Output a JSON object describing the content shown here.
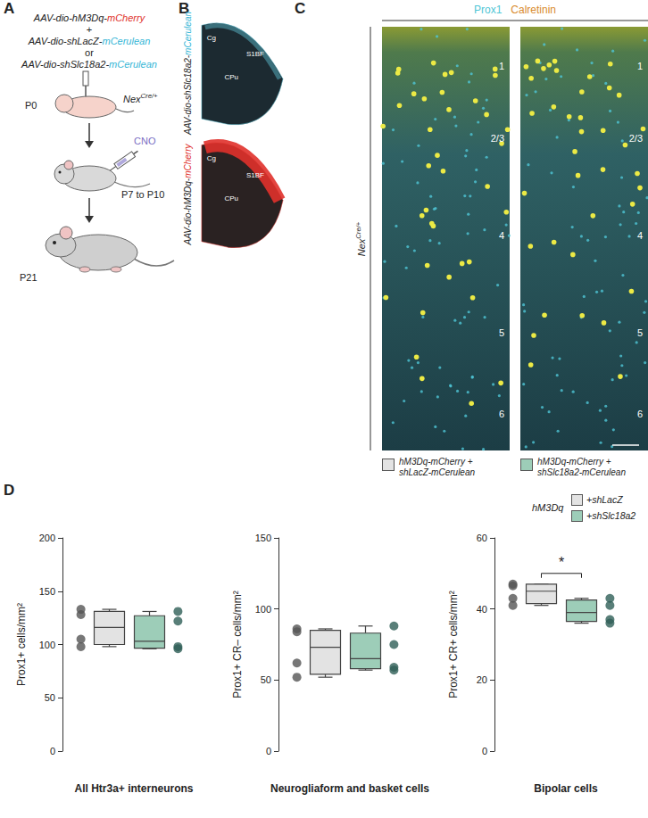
{
  "figure": {
    "A": {
      "label": "A",
      "vectors": [
        {
          "text": "AAV-dio-hM3Dq-",
          "reporter": "mCherry",
          "color": "#e0312b"
        },
        {
          "text": "AAV-dio-shLacZ-",
          "reporter": "mCerulean",
          "color": "#35b6d6"
        },
        {
          "text": "AAV-dio-shSlc18a2-",
          "reporter": "mCerulean",
          "color": "#35b6d6"
        }
      ],
      "joiners": [
        "+",
        "or"
      ],
      "genotype": {
        "base": "Nex",
        "sup": "Cre/+"
      },
      "drug": {
        "text": "CNO",
        "color": "#7b6fc4"
      },
      "timepoints": [
        "P0",
        "P7 to P10",
        "P21"
      ]
    },
    "B": {
      "label": "B",
      "images": [
        {
          "caption": {
            "text": "AAV-dio-shSlc18a2-",
            "reporter": "mCerulean",
            "color": "#35b6d6"
          },
          "regions": [
            "Cg",
            "S1BF",
            "CPu"
          ],
          "color": "#5fc3d8"
        },
        {
          "caption": {
            "text": "AAV-dio-hM3Dq-",
            "reporter": "mCherry",
            "color": "#e0312b"
          },
          "regions": [
            "Cg",
            "S1BF",
            "CPu"
          ],
          "color": "#e0312b"
        }
      ]
    },
    "C": {
      "label": "C",
      "stains": [
        {
          "name": "Prox1",
          "color": "#4fc6d6"
        },
        {
          "name": "Calretinin",
          "color": "#d98b2e"
        }
      ],
      "genotype": {
        "base": "Nex",
        "sup": "Cre/+"
      },
      "layers": [
        "1",
        "2/3",
        "4",
        "5",
        "6"
      ],
      "conditions": [
        {
          "lines": [
            "hM3Dq-mCherry +",
            "shLacZ-mCerulean"
          ],
          "color": "#e3e3e3"
        },
        {
          "lines": [
            "hM3Dq-mCherry +",
            "shSlc18a2-mCerulean"
          ],
          "color": "#9dcdb8"
        }
      ]
    },
    "D": {
      "label": "D",
      "legend": {
        "title": "hM3Dq",
        "entries": [
          {
            "name": "+shLacZ",
            "color": "#e3e3e3"
          },
          {
            "name": "+shSlc18a2",
            "color": "#9dcdb8"
          }
        ]
      }
    }
  },
  "chart_data": [
    {
      "type": "boxplot",
      "title": "All Htr3a+ interneurons",
      "y_label": "Prox1+ cells/mm²",
      "ylim": [
        0,
        200
      ],
      "yticks": [
        0,
        50,
        100,
        150,
        200
      ],
      "tick_labels": "y",
      "series": [
        {
          "color": "#e3e3e3",
          "point_color": "#555555",
          "box": [
            98,
            100,
            116,
            131,
            133
          ],
          "points": [
            133,
            128,
            105,
            98
          ]
        },
        {
          "color": "#9dcdb8",
          "point_color": "#2f5f57",
          "box": [
            96,
            96.5,
            103,
            127,
            131
          ],
          "points": [
            131,
            122,
            98,
            96
          ]
        }
      ]
    },
    {
      "type": "boxplot",
      "title": "Neurogliaform and basket cells",
      "y_label": "Prox1+ CR– cells/mm²",
      "ylim": [
        0,
        150
      ],
      "yticks": [
        0,
        50,
        100,
        150
      ],
      "tick_labels": "y",
      "series": [
        {
          "color": "#e3e3e3",
          "point_color": "#555555",
          "box": [
            52,
            54,
            73,
            85,
            86
          ],
          "points": [
            86,
            84,
            62,
            52
          ]
        },
        {
          "color": "#9dcdb8",
          "point_color": "#2f5f57",
          "box": [
            57,
            58,
            65,
            83,
            88
          ],
          "points": [
            88,
            75,
            59,
            57
          ]
        }
      ]
    },
    {
      "type": "boxplot",
      "title": "Bipolar cells",
      "y_label": "Prox1+ CR+ cells/mm²",
      "ylim": [
        0,
        60
      ],
      "yticks": [
        0,
        20,
        40,
        60
      ],
      "tick_labels": "y",
      "annotations": [
        "*"
      ],
      "series": [
        {
          "color": "#e3e3e3",
          "point_color": "#555555",
          "box": [
            41,
            41.5,
            45,
            47,
            47
          ],
          "points": [
            47,
            46.5,
            43,
            41
          ]
        },
        {
          "color": "#9dcdb8",
          "point_color": "#2f5f57",
          "box": [
            36,
            36.5,
            39,
            42.5,
            43
          ],
          "points": [
            43,
            41,
            37,
            36
          ]
        }
      ]
    }
  ]
}
